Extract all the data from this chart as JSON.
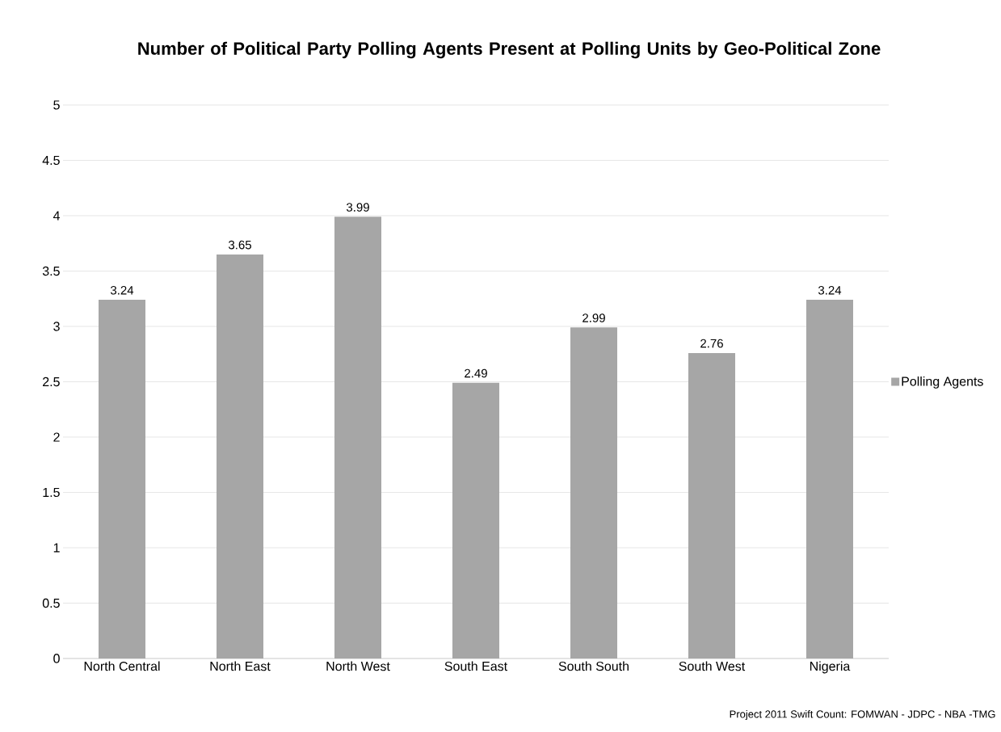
{
  "chart_data": {
    "type": "bar",
    "title": "Number of Political Party Polling Agents Present at Polling Units by Geo-Political Zone",
    "categories": [
      "North Central",
      "North East",
      "North West",
      "South East",
      "South South",
      "South West",
      "Nigeria"
    ],
    "series": [
      {
        "name": "Polling Agents",
        "color": "#a6a6a6",
        "values": [
          3.24,
          3.65,
          3.99,
          2.49,
          2.99,
          2.76,
          3.24
        ]
      }
    ],
    "ylim": [
      0,
      5
    ],
    "yticks": [
      0,
      0.5,
      1,
      1.5,
      2,
      2.5,
      3,
      3.5,
      4,
      4.5,
      5
    ],
    "grid": "y",
    "legend": "right",
    "data_labels": true,
    "annotations": [
      "Project 2011 Swift Count: FOMWAN - JDPC - NBA -TMG"
    ]
  }
}
